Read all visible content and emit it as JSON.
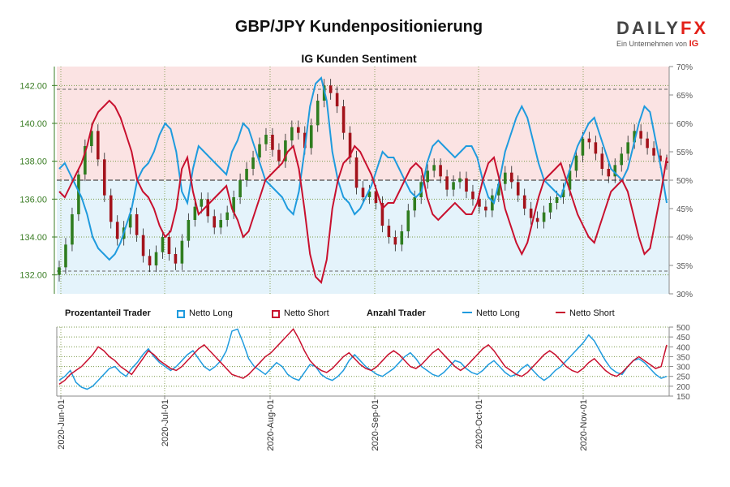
{
  "title": "GBP/JPY Kundenpositionierung",
  "subtitle": "IG Kunden Sentiment",
  "logo": {
    "brand_main": "DAILY",
    "brand_fx": "FX",
    "tagline": "Ein Unternehmen von",
    "tagline_brand": "IG"
  },
  "legend": {
    "pct_title": "Prozentanteil Trader",
    "pct_long": "Netto Long",
    "pct_short": "Netto Short",
    "count_title": "Anzahl Trader",
    "count_long": "Netto Long",
    "count_short": "Netto Short"
  },
  "colors": {
    "long": "#1f9bde",
    "short": "#c8102e",
    "long_bg": "#e4f3fb",
    "short_bg": "#fbe3e3",
    "candle_up": "#2f7d1f",
    "candle_down": "#a3131b",
    "price_axis": "#3a7d24"
  },
  "chart_data": [
    {
      "type": "candlestick+line",
      "title": "IG Kunden Sentiment",
      "price_axis": {
        "range": [
          131,
          143
        ],
        "ticks": [
          "132.00",
          "134.00",
          "136.00",
          "138.00",
          "140.00",
          "142.00"
        ]
      },
      "percent_axis": {
        "range": [
          30,
          70
        ],
        "ticks": [
          "30%",
          "35%",
          "40%",
          "45%",
          "50%",
          "55%",
          "60%",
          "65%",
          "70%"
        ],
        "reference_lines": [
          34,
          50,
          66
        ]
      },
      "x_ticks": [
        "2020-Jun-01",
        "2020-Jul-01",
        "2020-Aug-01",
        "2020-Sep-01",
        "2020-Oct-01",
        "2020-Nov-01"
      ],
      "pct_net_long": [
        52,
        53,
        51,
        49,
        47,
        44,
        40,
        38,
        37,
        36,
        37,
        39,
        42,
        45,
        50,
        52,
        53,
        55,
        58,
        60,
        59,
        55,
        48,
        46,
        52,
        56,
        55,
        54,
        53,
        52,
        51,
        55,
        57,
        60,
        59,
        56,
        53,
        50,
        49,
        48,
        47,
        45,
        44,
        48,
        55,
        63,
        67,
        68,
        64,
        55,
        50,
        47,
        46,
        44,
        45,
        47,
        49,
        52,
        55,
        54,
        54,
        52,
        50,
        48,
        47,
        48,
        53,
        56,
        57,
        56,
        55,
        54,
        55,
        56,
        56,
        54,
        50,
        47,
        46,
        50,
        55,
        58,
        61,
        63,
        61,
        57,
        53,
        50,
        49,
        48,
        47,
        50,
        53,
        56,
        58,
        60,
        61,
        58,
        55,
        52,
        51,
        50,
        52,
        56,
        60,
        63,
        62,
        57,
        52,
        46
      ],
      "pct_net_short": [
        48,
        47,
        49,
        51,
        53,
        56,
        60,
        62,
        63,
        64,
        63,
        61,
        58,
        55,
        50,
        48,
        47,
        45,
        42,
        40,
        41,
        45,
        52,
        54,
        48,
        44,
        45,
        46,
        47,
        48,
        49,
        45,
        43,
        40,
        41,
        44,
        47,
        50,
        51,
        52,
        53,
        55,
        56,
        52,
        45,
        37,
        33,
        32,
        36,
        45,
        50,
        53,
        54,
        56,
        55,
        53,
        51,
        48,
        45,
        46,
        46,
        48,
        50,
        52,
        53,
        52,
        47,
        44,
        43,
        44,
        45,
        46,
        45,
        44,
        44,
        46,
        50,
        53,
        54,
        50,
        45,
        42,
        39,
        37,
        39,
        43,
        47,
        50,
        51,
        52,
        53,
        50,
        47,
        44,
        42,
        40,
        39,
        42,
        45,
        48,
        49,
        50,
        48,
        44,
        40,
        37,
        38,
        43,
        48,
        54
      ],
      "count_net_long": [
        230,
        250,
        280,
        220,
        195,
        185,
        200,
        230,
        260,
        290,
        300,
        270,
        250,
        290,
        320,
        360,
        390,
        350,
        320,
        300,
        280,
        300,
        330,
        360,
        380,
        340,
        300,
        280,
        300,
        330,
        380,
        480,
        490,
        420,
        340,
        300,
        280,
        260,
        290,
        320,
        300,
        260,
        240,
        230,
        270,
        310,
        300,
        260,
        240,
        230,
        250,
        280,
        330,
        360,
        330,
        300,
        280,
        260,
        250,
        270,
        290,
        320,
        350,
        370,
        340,
        300,
        280,
        260,
        250,
        270,
        300,
        330,
        320,
        290,
        270,
        260,
        280,
        310,
        330,
        300,
        270,
        250,
        260,
        290,
        310,
        280,
        250,
        230,
        250,
        280,
        300,
        330,
        360,
        390,
        420,
        460,
        430,
        380,
        330,
        290,
        270,
        260,
        300,
        330,
        340,
        320,
        290,
        260,
        240,
        250
      ],
      "count_net_short": [
        210,
        230,
        260,
        280,
        300,
        330,
        360,
        400,
        380,
        350,
        330,
        300,
        280,
        260,
        300,
        340,
        380,
        360,
        330,
        310,
        290,
        280,
        300,
        330,
        360,
        390,
        410,
        380,
        350,
        320,
        290,
        260,
        250,
        240,
        260,
        290,
        320,
        350,
        370,
        400,
        430,
        460,
        490,
        440,
        380,
        330,
        300,
        280,
        270,
        290,
        320,
        350,
        370,
        340,
        310,
        290,
        280,
        300,
        330,
        360,
        380,
        360,
        330,
        300,
        290,
        310,
        340,
        370,
        390,
        360,
        330,
        300,
        280,
        300,
        330,
        360,
        390,
        410,
        380,
        340,
        300,
        280,
        260,
        250,
        270,
        300,
        330,
        360,
        380,
        360,
        330,
        300,
        280,
        270,
        290,
        320,
        340,
        310,
        280,
        260,
        250,
        270,
        300,
        330,
        350,
        330,
        310,
        290,
        300,
        410
      ]
    }
  ]
}
